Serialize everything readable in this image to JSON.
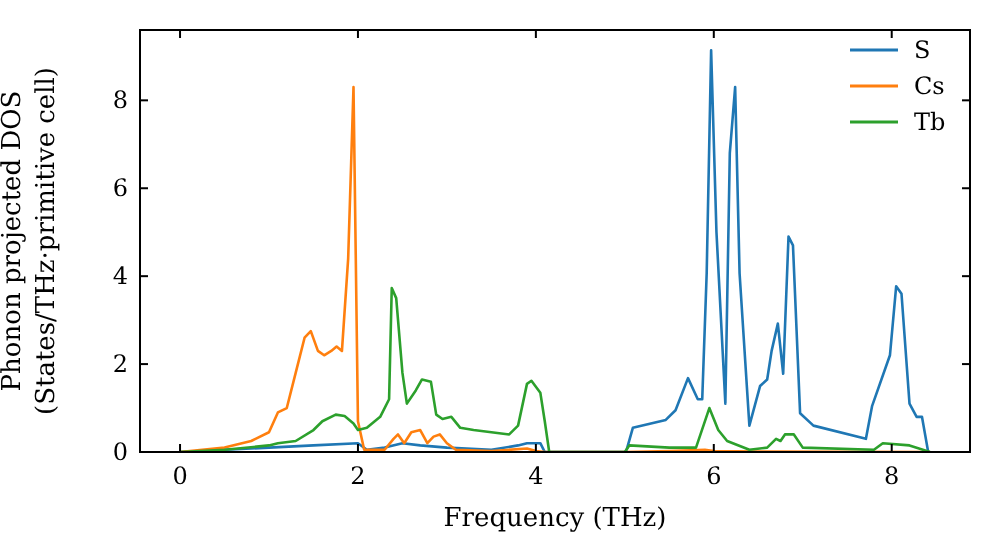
{
  "chart_data": {
    "type": "line",
    "xlabel": "Frequency (THz)",
    "ylabel": "Phonon projected DOS\n(States/THz·primitive cell)",
    "xlim": [
      -0.45,
      8.88
    ],
    "ylim": [
      0,
      9.6
    ],
    "xticks": [
      0,
      2,
      4,
      6,
      8
    ],
    "yticks": [
      0,
      2,
      4,
      6,
      8
    ],
    "legend": "top right",
    "grid": false,
    "series": [
      {
        "name": "S",
        "color": "#1f77b4",
        "x": [
          0,
          1.0,
          1.5,
          2.0,
          2.1,
          2.3,
          2.5,
          2.7,
          3.0,
          3.5,
          3.8,
          3.9,
          4.05,
          4.1,
          5.0,
          5.02,
          5.09,
          5.46,
          5.57,
          5.71,
          5.82,
          5.87,
          5.92,
          5.97,
          6.03,
          6.13,
          6.18,
          6.24,
          6.29,
          6.4,
          6.52,
          6.6,
          6.65,
          6.72,
          6.78,
          6.84,
          6.89,
          6.97,
          7.12,
          7.71,
          7.78,
          7.98,
          8.05,
          8.11,
          8.2,
          8.28,
          8.34,
          8.41
        ],
        "values": [
          0,
          0.1,
          0.15,
          0.2,
          0.05,
          0.1,
          0.2,
          0.15,
          0.1,
          0.05,
          0.15,
          0.2,
          0.2,
          0,
          0,
          0.05,
          0.55,
          0.73,
          0.95,
          1.68,
          1.2,
          1.2,
          4.06,
          9.14,
          5.0,
          1.1,
          6.8,
          8.3,
          4.06,
          0.6,
          1.5,
          1.65,
          2.3,
          2.92,
          1.78,
          4.9,
          4.7,
          0.88,
          0.6,
          0.3,
          1.05,
          2.2,
          3.77,
          3.6,
          1.1,
          0.8,
          0.8,
          0
        ]
      },
      {
        "name": "Cs",
        "color": "#ff7f0e",
        "x": [
          0,
          0.5,
          0.8,
          1.0,
          1.1,
          1.2,
          1.3,
          1.4,
          1.47,
          1.55,
          1.62,
          1.7,
          1.76,
          1.82,
          1.89,
          1.95,
          2.0,
          2.07,
          2.3,
          2.4,
          2.45,
          2.52,
          2.6,
          2.7,
          2.78,
          2.85,
          2.92,
          3.0,
          3.1,
          3.5,
          3.9,
          4.0,
          4.1,
          5.0,
          5.5,
          5.9,
          6.0,
          6.5,
          8.43
        ],
        "values": [
          0,
          0.1,
          0.25,
          0.45,
          0.9,
          1.0,
          1.8,
          2.6,
          2.75,
          2.3,
          2.2,
          2.3,
          2.4,
          2.3,
          4.4,
          8.3,
          0.7,
          0.05,
          0.05,
          0.3,
          0.4,
          0.2,
          0.45,
          0.5,
          0.2,
          0.35,
          0.4,
          0.2,
          0.05,
          0.02,
          0.08,
          0.02,
          0,
          0,
          0.02,
          0.05,
          0.02,
          0.01,
          0
        ]
      },
      {
        "name": "Tb",
        "color": "#2ca02c",
        "x": [
          0,
          0.5,
          1.0,
          1.1,
          1.3,
          1.5,
          1.6,
          1.75,
          1.85,
          1.95,
          2.0,
          2.1,
          2.25,
          2.35,
          2.38,
          2.43,
          2.5,
          2.55,
          2.65,
          2.72,
          2.82,
          2.88,
          2.95,
          3.05,
          3.15,
          3.3,
          3.5,
          3.7,
          3.8,
          3.9,
          3.95,
          4.05,
          4.1,
          4.15,
          5.0,
          5.05,
          5.5,
          5.8,
          5.95,
          6.05,
          6.15,
          6.4,
          6.6,
          6.7,
          6.75,
          6.8,
          6.9,
          7.0,
          7.8,
          7.9,
          8.2,
          8.43
        ],
        "values": [
          0,
          0.05,
          0.15,
          0.2,
          0.25,
          0.5,
          0.7,
          0.85,
          0.82,
          0.65,
          0.5,
          0.55,
          0.8,
          1.2,
          3.73,
          3.5,
          1.8,
          1.1,
          1.4,
          1.65,
          1.6,
          0.85,
          0.75,
          0.8,
          0.55,
          0.5,
          0.45,
          0.4,
          0.6,
          1.55,
          1.62,
          1.35,
          0.7,
          0,
          0,
          0.15,
          0.1,
          0.1,
          1.0,
          0.5,
          0.25,
          0.05,
          0.1,
          0.3,
          0.25,
          0.4,
          0.4,
          0.1,
          0.05,
          0.2,
          0.15,
          0
        ]
      }
    ]
  }
}
